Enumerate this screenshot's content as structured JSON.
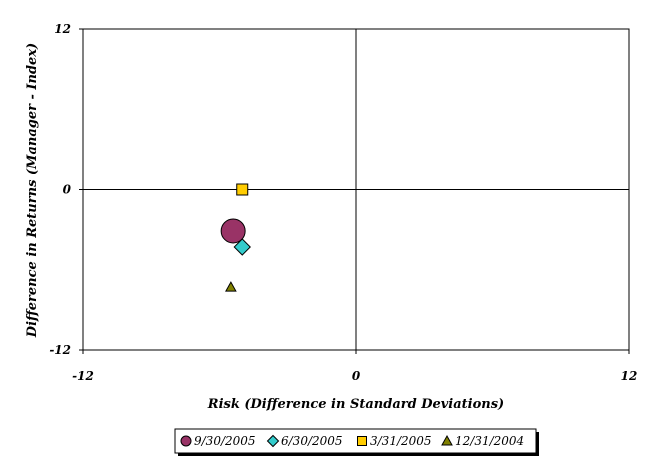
{
  "chart_data": {
    "type": "scatter",
    "xlabel": "Risk (Difference in Standard Deviations)",
    "ylabel": "Difference in Returns (Manager - Index)",
    "xlim": [
      -12,
      12
    ],
    "ylim": [
      -12,
      12
    ],
    "x_ticks": [
      -12,
      0,
      12
    ],
    "y_ticks": [
      12,
      0,
      -12
    ],
    "x_tick_labels": [
      "-12",
      "0",
      "12"
    ],
    "y_tick_labels": [
      "12",
      "0",
      "-12"
    ],
    "grid": false,
    "legend_position": "bottom",
    "series": [
      {
        "name": "9/30/2005",
        "marker": "circle",
        "color": "#993366",
        "x": -5.4,
        "y": -3.1
      },
      {
        "name": "6/30/2005",
        "marker": "diamond",
        "color": "#33CCCC",
        "x": -5.0,
        "y": -4.3
      },
      {
        "name": "3/31/2005",
        "marker": "square",
        "color": "#FFCC00",
        "x": -5.0,
        "y": 0.0
      },
      {
        "name": "12/31/2004",
        "marker": "triangle",
        "color": "#808000",
        "x": -5.5,
        "y": -7.3
      }
    ]
  }
}
